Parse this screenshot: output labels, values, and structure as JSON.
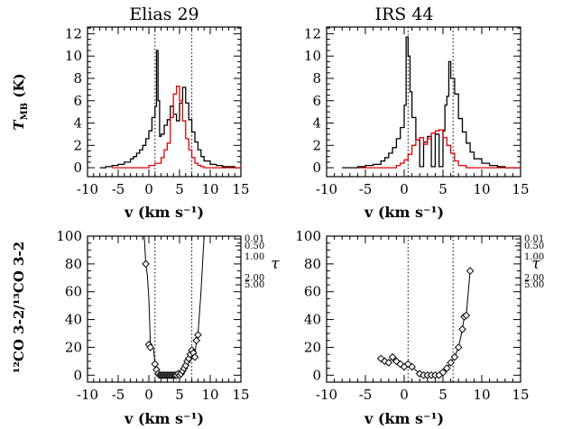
{
  "chart_data": [
    {
      "id": "elias29_spectrum",
      "type": "line",
      "title": "Elias 29",
      "xlabel": "v (km s⁻¹)",
      "ylabel": "T_MB (K)",
      "xlim": [
        -10,
        15
      ],
      "ylim": [
        -0.8,
        12.6
      ],
      "xticks": [
        -10,
        -5,
        0,
        5,
        10,
        15
      ],
      "yticks": [
        0,
        2,
        4,
        6,
        8,
        10,
        12
      ],
      "vlines": [
        1.0,
        7.0
      ],
      "series": [
        {
          "color": "#000000",
          "style": "step",
          "x": [
            -8,
            -7,
            -6,
            -5,
            -4,
            -3,
            -2.5,
            -2,
            -1.5,
            -1,
            -0.5,
            0,
            0.5,
            1,
            1.25,
            1.5,
            1.75,
            2,
            2.5,
            3,
            3.5,
            4,
            4.5,
            5,
            5.5,
            6,
            6.5,
            7,
            7.5,
            8,
            8.5,
            9,
            10,
            11,
            12,
            13,
            14
          ],
          "values": [
            0,
            0.1,
            0.2,
            0.3,
            0.5,
            0.8,
            1.0,
            1.3,
            1.6,
            2.0,
            2.6,
            3.3,
            4.5,
            5.5,
            10.5,
            6.0,
            2.8,
            3.0,
            3.8,
            4.3,
            5.5,
            4.8,
            4.2,
            5.8,
            7.2,
            5.8,
            4.3,
            3.2,
            2.3,
            1.6,
            1.0,
            0.6,
            0.3,
            0.2,
            0.1,
            0.1,
            0
          ]
        },
        {
          "color": "#e00000",
          "style": "step",
          "x": [
            -6,
            -2,
            0,
            1,
            2,
            2.5,
            3,
            3.5,
            4,
            4.5,
            5,
            5.5,
            6,
            6.5,
            7,
            7.5,
            8,
            8.5,
            9,
            10,
            11
          ],
          "values": [
            0,
            0,
            0.2,
            0.4,
            0.9,
            1.6,
            2.2,
            4.5,
            6.6,
            7.3,
            6.0,
            4.2,
            2.6,
            1.6,
            0.9,
            0.4,
            0.2,
            0.1,
            0,
            0,
            0
          ]
        }
      ]
    },
    {
      "id": "irs44_spectrum",
      "type": "line",
      "title": "IRS 44",
      "xlabel": "v (km s⁻¹)",
      "ylabel": "",
      "xlim": [
        -10,
        15
      ],
      "ylim": [
        -0.8,
        12.6
      ],
      "xticks": [
        -10,
        -5,
        0,
        5,
        10,
        15
      ],
      "yticks": [
        0,
        2,
        4,
        6,
        8,
        10,
        12
      ],
      "vlines": [
        0.5,
        6.3
      ],
      "series": [
        {
          "color": "#000000",
          "style": "step",
          "x": [
            -8,
            -6,
            -5,
            -4,
            -3,
            -2.5,
            -2,
            -1.5,
            -1,
            -0.5,
            0,
            0.25,
            0.5,
            0.75,
            1,
            1.5,
            2,
            2.5,
            3,
            3.5,
            4,
            4.5,
            5,
            5.25,
            5.5,
            5.75,
            6,
            6.5,
            7,
            7.5,
            8,
            8.5,
            9,
            10,
            11,
            12,
            13,
            14
          ],
          "values": [
            0,
            0.1,
            0.2,
            0.3,
            0.6,
            0.9,
            1.3,
            1.8,
            2.6,
            3.6,
            5.6,
            11.7,
            10.0,
            6.8,
            4.5,
            2.5,
            0.1,
            2.3,
            2.8,
            0.1,
            3.0,
            0.1,
            3.3,
            5.6,
            6.4,
            9.5,
            8.0,
            6.6,
            4.4,
            3.2,
            2.2,
            1.4,
            0.8,
            0.4,
            0.2,
            0.1,
            0,
            0
          ]
        },
        {
          "color": "#e00000",
          "style": "step",
          "x": [
            -6,
            -2,
            -1,
            -0.5,
            0,
            0.5,
            1,
            1.5,
            2,
            2.5,
            3,
            3.5,
            4,
            4.5,
            5,
            5.5,
            6,
            6.5,
            7,
            8,
            9,
            10
          ],
          "values": [
            0,
            0,
            0.2,
            0.4,
            0.7,
            1.2,
            2.0,
            2.5,
            2.7,
            2.1,
            2.6,
            3.1,
            3.3,
            3.4,
            2.7,
            2.0,
            1.3,
            0.6,
            0.2,
            0,
            0,
            0
          ]
        }
      ]
    },
    {
      "id": "elias29_ratio",
      "type": "line",
      "title": "",
      "xlabel": "v (km s⁻¹)",
      "ylabel": "¹²CO 3-2/¹³CO 3-2",
      "xlim": [
        -10,
        15
      ],
      "ylim": [
        -5,
        100
      ],
      "xticks": [
        -10,
        -5,
        0,
        5,
        10,
        15
      ],
      "yticks": [
        0,
        20,
        40,
        60,
        80,
        100
      ],
      "vlines": [
        1.0,
        7.0
      ],
      "secondary_axis": {
        "label": "τ",
        "ticks": [
          "0.01",
          "0.50",
          "1.00",
          "2.00",
          "5.00"
        ],
        "ratio_values": [
          98,
          93,
          85,
          70,
          65
        ]
      },
      "series": [
        {
          "name": "curve",
          "color": "#000000",
          "marker": "none",
          "x": [
            -0.75,
            -0.5,
            -0.25,
            0,
            0.25,
            0.5,
            0.75,
            1.0,
            1.25,
            1.5,
            1.75,
            2.0,
            2.25,
            2.5,
            2.75,
            3.0,
            3.25,
            3.5,
            3.75,
            4.0,
            4.25,
            4.5,
            4.75,
            5.0,
            5.25,
            5.5,
            5.75,
            6.0,
            6.25,
            6.5,
            6.75,
            7.0,
            7.25,
            7.5,
            7.75,
            8.0,
            8.5,
            9.0,
            9.2
          ],
          "values": [
            100,
            80,
            72,
            55,
            22,
            20,
            19,
            8,
            4,
            1,
            0,
            0,
            0,
            0,
            0,
            0,
            0,
            0,
            0,
            0,
            0,
            0,
            1,
            0,
            1,
            3,
            5,
            7,
            10,
            12,
            15,
            18,
            16,
            13,
            25,
            29,
            60,
            100,
            100
          ]
        },
        {
          "name": "points",
          "color": "#000000",
          "marker": "diamond",
          "x": [
            -0.5,
            0,
            0.25,
            1.0,
            1.25,
            1.5,
            1.75,
            2.0,
            2.25,
            2.5,
            2.75,
            3.0,
            3.25,
            3.5,
            3.75,
            4.0,
            4.25,
            4.5,
            4.75,
            5.0,
            5.25,
            5.5,
            5.75,
            6.0,
            6.25,
            6.5,
            6.75,
            7.0,
            7.25,
            7.5,
            7.75,
            8.0
          ],
          "values": [
            80,
            22,
            20,
            8,
            4,
            1,
            0,
            0,
            0,
            0,
            0,
            0,
            0,
            0,
            0,
            0,
            0,
            0,
            1,
            0,
            1,
            3,
            5,
            7,
            10,
            12,
            15,
            18,
            16,
            13,
            25,
            29
          ]
        }
      ]
    },
    {
      "id": "irs44_ratio",
      "type": "line",
      "title": "",
      "xlabel": "v (km s⁻¹)",
      "ylabel": "",
      "xlim": [
        -10,
        15
      ],
      "ylim": [
        -5,
        100
      ],
      "xticks": [
        -10,
        -5,
        0,
        5,
        10,
        15
      ],
      "yticks": [
        0,
        20,
        40,
        60,
        80,
        100
      ],
      "vlines": [
        0.5,
        6.3
      ],
      "secondary_axis": {
        "label": "τ",
        "ticks": [
          "0.01",
          "0.50",
          "1.00",
          "2.00",
          "5.00"
        ],
        "ratio_values": [
          98,
          93,
          85,
          70,
          65
        ]
      },
      "series": [
        {
          "name": "points",
          "color": "#000000",
          "marker": "diamond",
          "x": [
            -3.0,
            -2.5,
            -2.0,
            -1.5,
            -1.0,
            -0.5,
            0,
            0.5,
            1.0,
            2.0,
            2.5,
            3.0,
            3.5,
            4.0,
            4.5,
            5.0,
            5.5,
            6.0,
            6.5,
            7.0,
            7.5,
            7.75,
            8.0,
            8.5
          ],
          "values": [
            12,
            10,
            9,
            13,
            10,
            8,
            6,
            8,
            6,
            1,
            0,
            0,
            0,
            0,
            0,
            2,
            5,
            9,
            13,
            20,
            33,
            42,
            43,
            75
          ]
        }
      ]
    }
  ]
}
